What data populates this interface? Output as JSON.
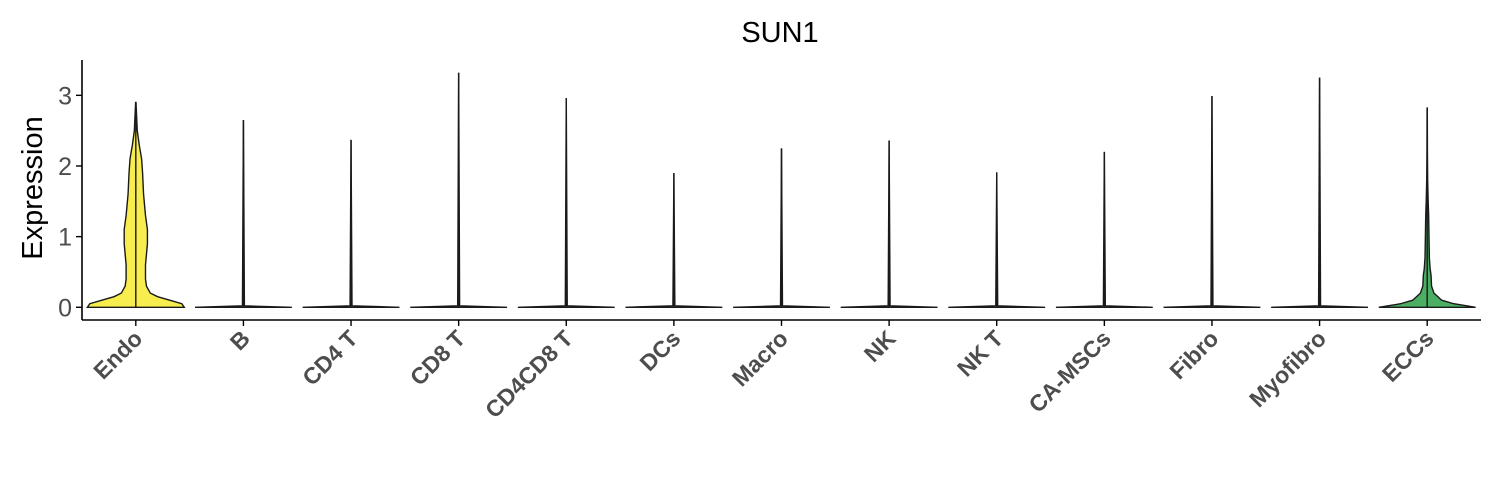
{
  "chart_data": {
    "type": "violin",
    "title": "SUN1",
    "xlabel": "",
    "ylabel": "Expression",
    "ylim": [
      -0.18,
      3.5
    ],
    "yticks": [
      0,
      1,
      2,
      3
    ],
    "grid": false,
    "legend": "none",
    "categories": [
      "Endo",
      "B",
      "CD4 T",
      "CD8 T",
      "CD4CD8 T",
      "DCs",
      "Macro",
      "NK",
      "NK T",
      "CA-MSCs",
      "Fibro",
      "Myofibro",
      "ECCs"
    ],
    "max_values": [
      2.9,
      2.65,
      2.37,
      3.32,
      2.96,
      1.9,
      2.25,
      2.36,
      1.91,
      2.2,
      2.99,
      3.25,
      2.82
    ],
    "fill_colors": [
      "#F8ED4F",
      "#FFFFFF",
      "#FFFFFF",
      "#FFFFFF",
      "#FFFFFF",
      "#FFFFFF",
      "#FFFFFF",
      "#FFFFFF",
      "#FFFFFF",
      "#FFFFFF",
      "#FFFFFF",
      "#FFFFFF",
      "#4BAE62"
    ],
    "density_profiles": [
      [
        [
          0,
          1.0
        ],
        [
          0.05,
          0.95
        ],
        [
          0.1,
          0.7
        ],
        [
          0.15,
          0.45
        ],
        [
          0.2,
          0.3
        ],
        [
          0.3,
          0.22
        ],
        [
          0.4,
          0.2
        ],
        [
          0.5,
          0.2
        ],
        [
          0.6,
          0.2
        ],
        [
          0.75,
          0.22
        ],
        [
          0.9,
          0.24
        ],
        [
          1.1,
          0.24
        ],
        [
          1.3,
          0.2
        ],
        [
          1.6,
          0.16
        ],
        [
          1.9,
          0.14
        ],
        [
          2.1,
          0.12
        ],
        [
          2.3,
          0.07
        ],
        [
          2.5,
          0.03
        ],
        [
          2.9,
          0.004
        ]
      ],
      [
        [
          0,
          1.0
        ],
        [
          0.02,
          0.02
        ],
        [
          2.65,
          0.0
        ]
      ],
      [
        [
          0,
          1.0
        ],
        [
          0.02,
          0.02
        ],
        [
          2.37,
          0.0
        ]
      ],
      [
        [
          0,
          1.0
        ],
        [
          0.02,
          0.02
        ],
        [
          3.32,
          0.0
        ]
      ],
      [
        [
          0,
          1.0
        ],
        [
          0.02,
          0.02
        ],
        [
          2.96,
          0.0
        ]
      ],
      [
        [
          0,
          1.0
        ],
        [
          0.02,
          0.02
        ],
        [
          1.9,
          0.0
        ]
      ],
      [
        [
          0,
          1.0
        ],
        [
          0.02,
          0.02
        ],
        [
          2.25,
          0.0
        ]
      ],
      [
        [
          0,
          1.0
        ],
        [
          0.02,
          0.02
        ],
        [
          2.36,
          0.0
        ]
      ],
      [
        [
          0,
          1.0
        ],
        [
          0.02,
          0.02
        ],
        [
          1.91,
          0.0
        ]
      ],
      [
        [
          0,
          1.0
        ],
        [
          0.02,
          0.02
        ],
        [
          2.2,
          0.0
        ]
      ],
      [
        [
          0,
          1.0
        ],
        [
          0.02,
          0.02
        ],
        [
          2.99,
          0.0
        ]
      ],
      [
        [
          0,
          1.0
        ],
        [
          0.02,
          0.02
        ],
        [
          3.25,
          0.0
        ]
      ],
      [
        [
          0,
          1.0
        ],
        [
          0.05,
          0.55
        ],
        [
          0.1,
          0.3
        ],
        [
          0.2,
          0.14
        ],
        [
          0.3,
          0.09
        ],
        [
          0.45,
          0.08
        ],
        [
          0.55,
          0.06
        ],
        [
          0.7,
          0.045
        ],
        [
          0.9,
          0.04
        ],
        [
          1.1,
          0.035
        ],
        [
          1.3,
          0.03
        ],
        [
          1.5,
          0.02
        ],
        [
          1.8,
          0.01
        ],
        [
          2.2,
          0.005
        ],
        [
          2.82,
          0.002
        ]
      ]
    ]
  }
}
